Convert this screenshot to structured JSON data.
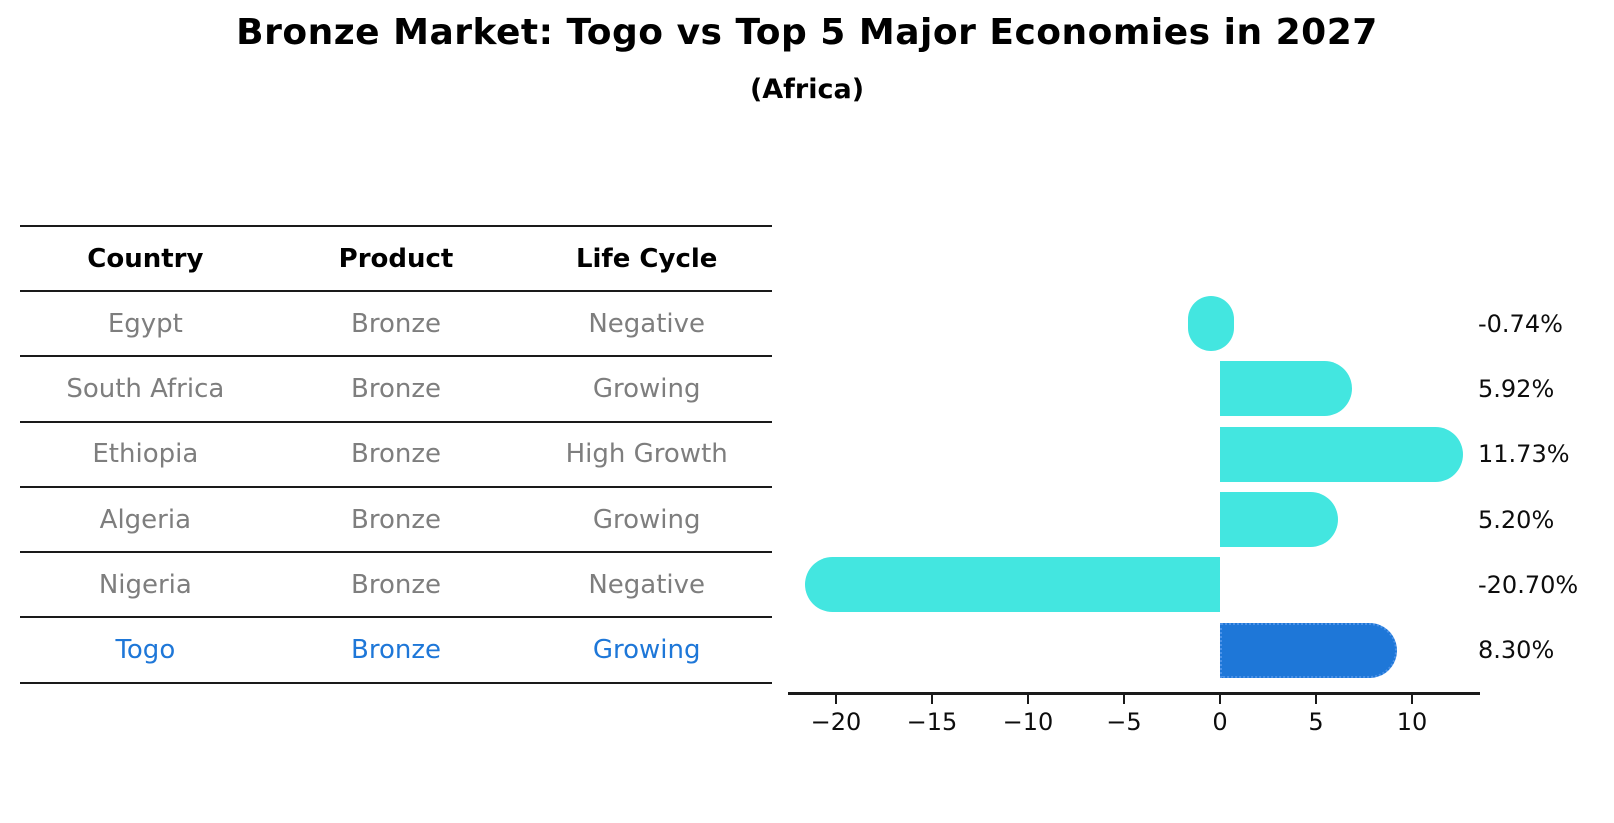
{
  "title": "Bronze Market: Togo vs Top 5 Major Economies in 2027",
  "subtitle": "(Africa)",
  "table": {
    "headers": [
      "Country",
      "Product",
      "Life Cycle"
    ],
    "rows": [
      {
        "country": "Egypt",
        "product": "Bronze",
        "life_cycle": "Negative",
        "highlight": false
      },
      {
        "country": "South Africa",
        "product": "Bronze",
        "life_cycle": "Growing",
        "highlight": false
      },
      {
        "country": "Ethiopia",
        "product": "Bronze",
        "life_cycle": "High Growth",
        "highlight": false
      },
      {
        "country": "Algeria",
        "product": "Bronze",
        "life_cycle": "Growing",
        "highlight": false
      },
      {
        "country": "Nigeria",
        "product": "Bronze",
        "life_cycle": "Negative",
        "highlight": false
      },
      {
        "country": "Togo",
        "product": "Bronze",
        "life_cycle": "Growing",
        "highlight": true
      }
    ]
  },
  "chart_data": {
    "type": "bar",
    "orientation": "horizontal",
    "title": "Bronze Market: Togo vs Top 5 Major Economies in 2027 (Africa)",
    "categories": [
      "Egypt",
      "South Africa",
      "Ethiopia",
      "Algeria",
      "Nigeria",
      "Togo"
    ],
    "values": [
      -0.74,
      5.92,
      11.73,
      5.2,
      -20.7,
      8.3
    ],
    "value_labels": [
      "-0.74%",
      "5.92%",
      "11.73%",
      "5.20%",
      "-20.70%",
      "8.30%"
    ],
    "highlight_index": 5,
    "x_ticks": [
      -20,
      -15,
      -10,
      -5,
      0,
      5,
      10
    ],
    "x_tick_labels": [
      "−20",
      "−15",
      "−10",
      "−5",
      "0",
      "5",
      "10"
    ],
    "xlim": [
      -22.5,
      13.5
    ],
    "grid": false,
    "legend": false,
    "bar_color": "#43e6e0",
    "highlight_bar_color": "#1e77d8",
    "highlight_border_color": "#4b92e8",
    "axis_color": "#1a1a1a",
    "muted_text_color": "#7e7e7e",
    "highlight_text_color": "#1e77d8"
  }
}
